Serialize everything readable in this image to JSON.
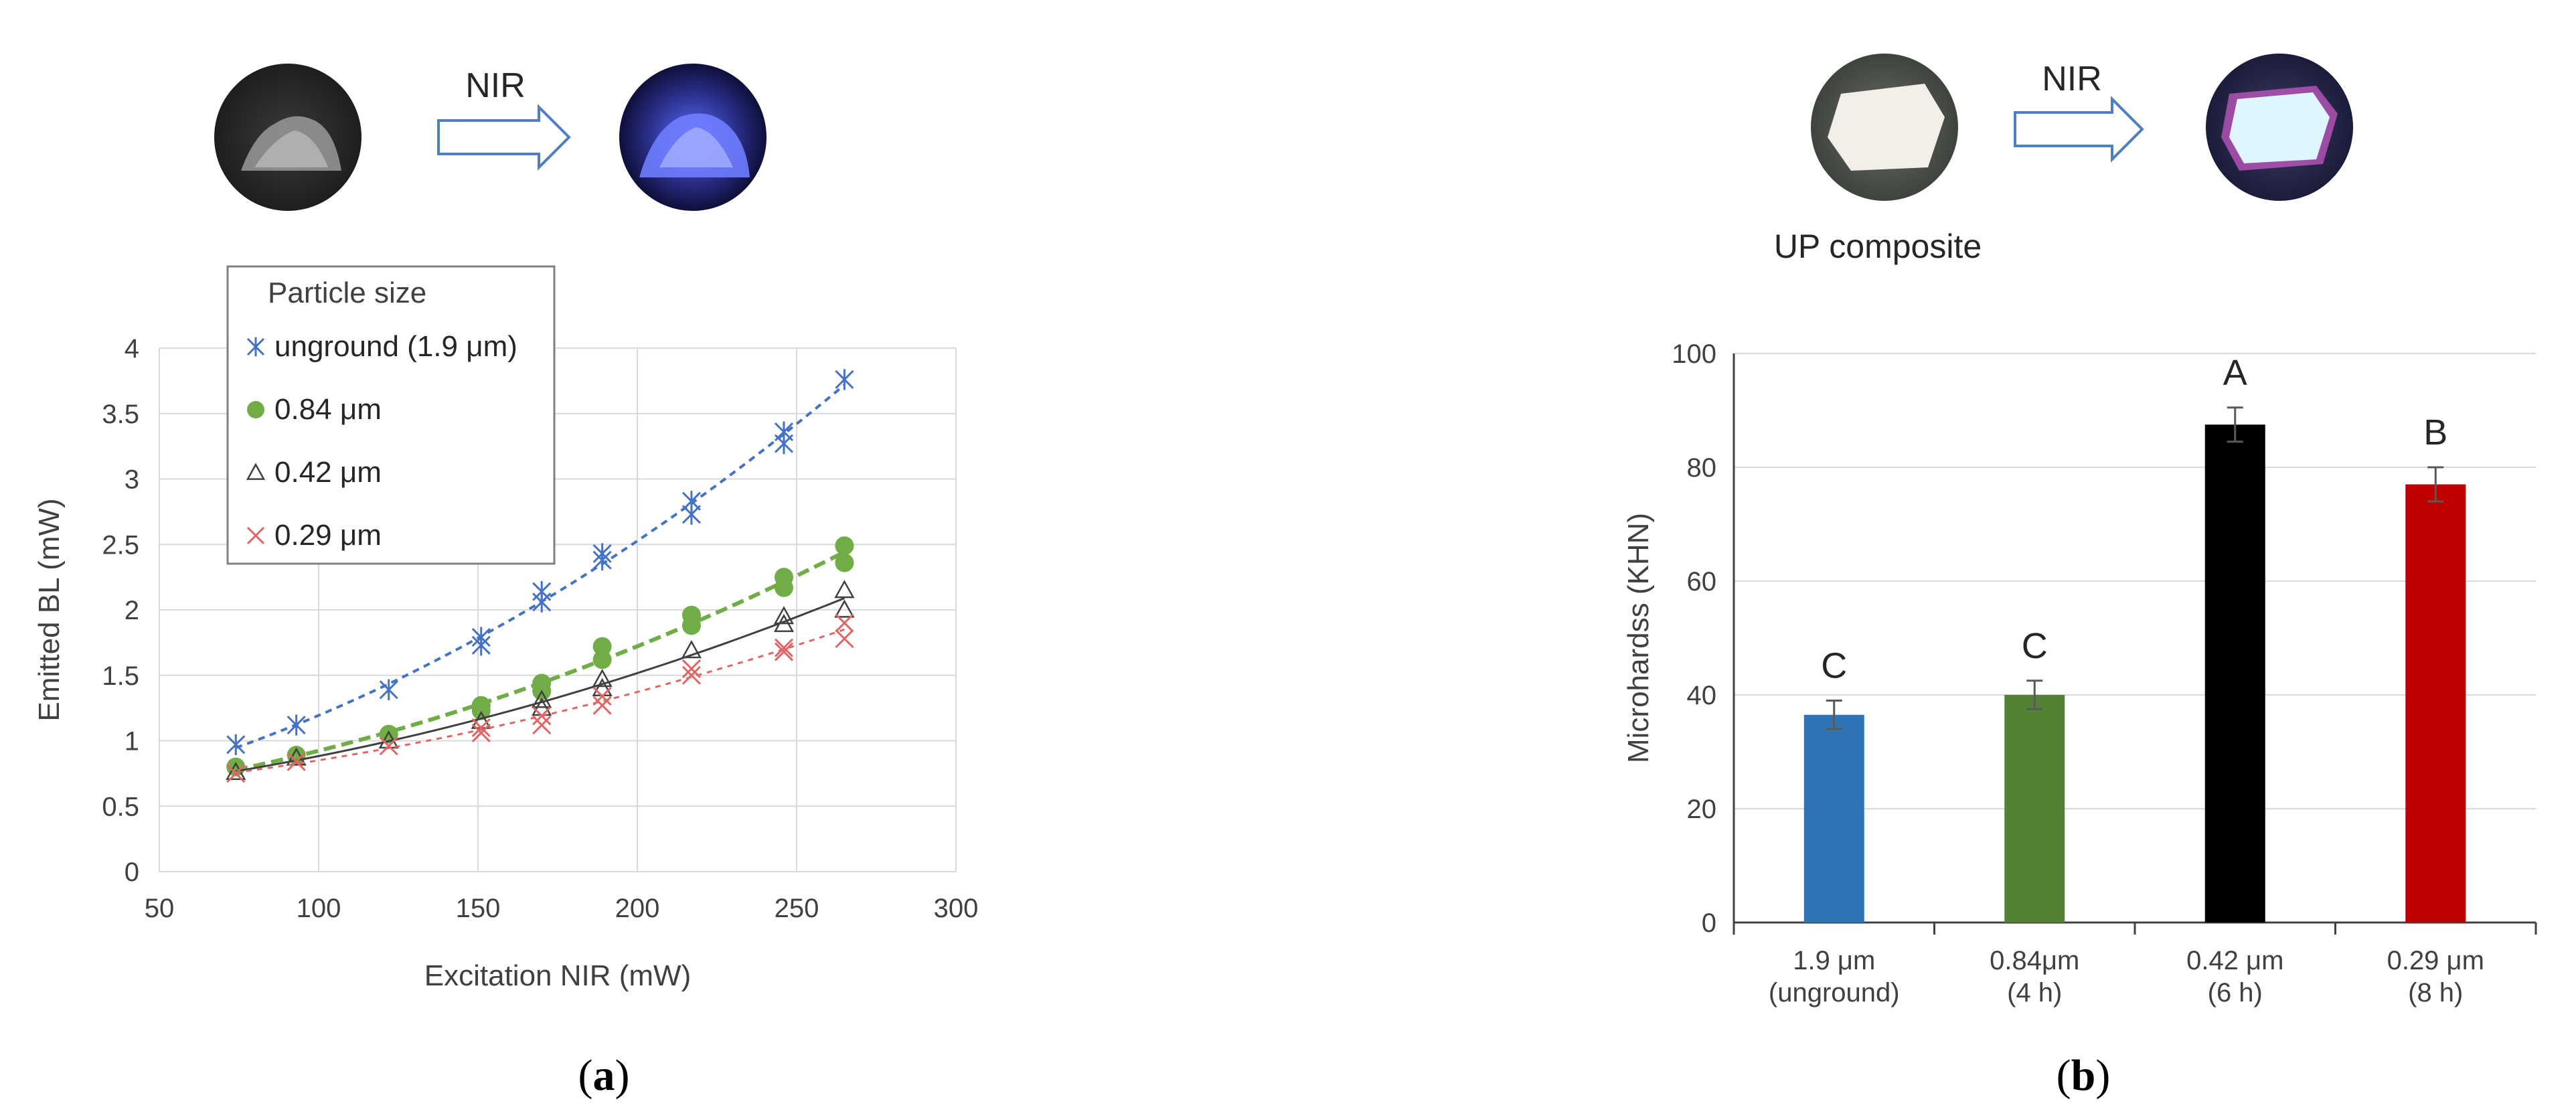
{
  "photos_a": {
    "arrow_label": "NIR"
  },
  "photos_b": {
    "arrow_label": "NIR",
    "caption": "UP composite"
  },
  "panel_labels": {
    "a_open": "(",
    "a_letter": "a",
    "a_close": ")",
    "b_open": "(",
    "b_letter": "b",
    "b_close": ")"
  },
  "chart_data": [
    {
      "type": "scatter",
      "xlabel": "Excitation NIR (mW)",
      "ylabel": "Emitted BL (mW)",
      "xlim": [
        50,
        300
      ],
      "ylim": [
        0,
        4
      ],
      "xticks": [
        "50",
        "100",
        "150",
        "200",
        "250",
        "300"
      ],
      "yticks": [
        "0",
        "0.5",
        "1",
        "1.5",
        "2",
        "2.5",
        "3",
        "3.5",
        "4"
      ],
      "grid": true,
      "legend": {
        "title": "Particle size",
        "placement": "top-left"
      },
      "trendlines": "dashed polynomial fit per series",
      "series": [
        {
          "name": "unground (1.9 μm)",
          "marker": "asterisk",
          "color": "#4472C4",
          "points": [
            [
              74,
              0.97
            ],
            [
              93,
              1.12
            ],
            [
              122,
              1.39
            ],
            [
              151,
              1.79
            ],
            [
              151,
              1.73
            ],
            [
              170,
              2.14
            ],
            [
              170,
              2.06
            ],
            [
              189,
              2.43
            ],
            [
              189,
              2.38
            ],
            [
              217,
              2.83
            ],
            [
              217,
              2.73
            ],
            [
              246,
              3.36
            ],
            [
              246,
              3.27
            ],
            [
              265,
              3.76
            ]
          ]
        },
        {
          "name": "0.84  μm",
          "marker": "circle",
          "color": "#70AD47",
          "points": [
            [
              74,
              0.8
            ],
            [
              93,
              0.89
            ],
            [
              122,
              1.05
            ],
            [
              151,
              1.27
            ],
            [
              151,
              1.23
            ],
            [
              170,
              1.44
            ],
            [
              170,
              1.38
            ],
            [
              189,
              1.72
            ],
            [
              189,
              1.62
            ],
            [
              217,
              1.96
            ],
            [
              217,
              1.88
            ],
            [
              246,
              2.25
            ],
            [
              246,
              2.17
            ],
            [
              265,
              2.49
            ],
            [
              265,
              2.36
            ]
          ]
        },
        {
          "name": "0.42 μm",
          "marker": "triangle",
          "color": "#404040",
          "points": [
            [
              74,
              0.76
            ],
            [
              93,
              0.87
            ],
            [
              122,
              1.0
            ],
            [
              151,
              1.15
            ],
            [
              170,
              1.31
            ],
            [
              170,
              1.25
            ],
            [
              189,
              1.47
            ],
            [
              189,
              1.4
            ],
            [
              217,
              1.69
            ],
            [
              246,
              1.95
            ],
            [
              246,
              1.89
            ],
            [
              265,
              2.15
            ],
            [
              265,
              2.0
            ]
          ]
        },
        {
          "name": "0.29 μm",
          "marker": "x",
          "color": "#E06666",
          "points": [
            [
              74,
              0.75
            ],
            [
              93,
              0.84
            ],
            [
              122,
              0.96
            ],
            [
              151,
              1.1
            ],
            [
              151,
              1.06
            ],
            [
              170,
              1.19
            ],
            [
              170,
              1.12
            ],
            [
              189,
              1.34
            ],
            [
              189,
              1.27
            ],
            [
              217,
              1.55
            ],
            [
              217,
              1.5
            ],
            [
              246,
              1.71
            ],
            [
              246,
              1.68
            ],
            [
              265,
              1.9
            ],
            [
              265,
              1.78
            ]
          ]
        }
      ]
    },
    {
      "type": "bar",
      "ylabel": "Microhardss (KHN)",
      "ylim": [
        0,
        100
      ],
      "yticks": [
        "0",
        "20",
        "40",
        "60",
        "80",
        "100"
      ],
      "grid": true,
      "categories": [
        {
          "line1": "1.9 μm",
          "line2": "(unground)"
        },
        {
          "line1": "0.84μm",
          "line2": "(4 h)"
        },
        {
          "line1": "0.42 μm",
          "line2": "(6 h)"
        },
        {
          "line1": "0.29 μm",
          "line2": "(8 h)"
        }
      ],
      "values": [
        36.5,
        40.0,
        87.5,
        77.0
      ],
      "errors": [
        2.5,
        2.5,
        3.0,
        3.0
      ],
      "colors": [
        "#2E75B6",
        "#548235",
        "#000000",
        "#C00000"
      ],
      "letters": [
        "C",
        "C",
        "A",
        "B"
      ]
    }
  ]
}
